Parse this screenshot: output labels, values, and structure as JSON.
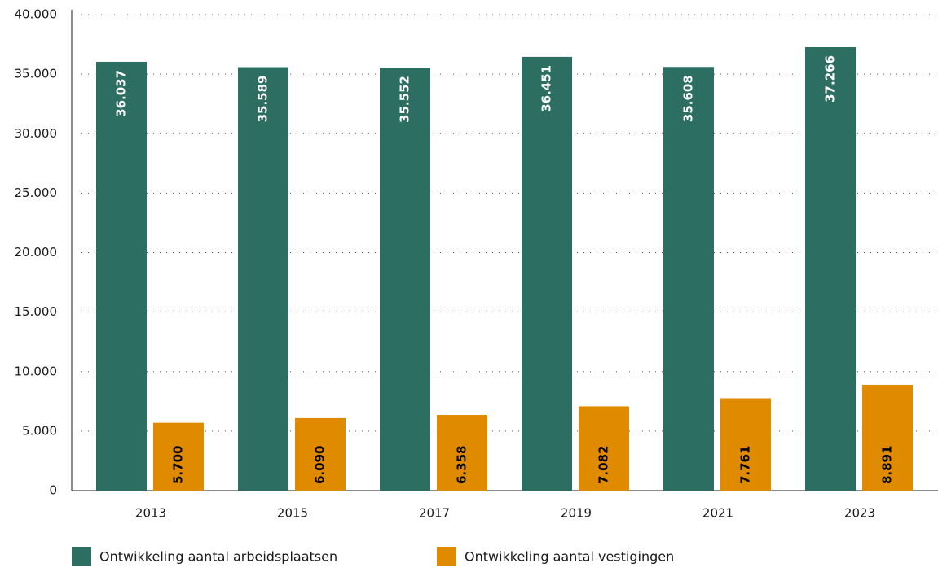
{
  "chart_data": {
    "type": "bar",
    "categories": [
      "2013",
      "2015",
      "2017",
      "2019",
      "2021",
      "2023"
    ],
    "series": [
      {
        "name": "Ontwikkeling aantal arbeidsplaatsen",
        "color": "#2d6e62",
        "values": [
          36037,
          35589,
          35552,
          36451,
          35608,
          37266
        ],
        "value_labels": [
          "36.037",
          "35.589",
          "35.552",
          "36.451",
          "35.608",
          "37.266"
        ]
      },
      {
        "name": "Ontwikkeling aantal vestigingen",
        "color": "#e08a00",
        "values": [
          5700,
          6090,
          6358,
          7082,
          7761,
          8891
        ],
        "value_labels": [
          "5.700",
          "6.090",
          "6.358",
          "7.082",
          "7.761",
          "8.891"
        ]
      }
    ],
    "ylim": [
      0,
      40000
    ],
    "yticks": [
      {
        "value": 0,
        "label": "0"
      },
      {
        "value": 5000,
        "label": "5.000"
      },
      {
        "value": 10000,
        "label": "10.000"
      },
      {
        "value": 15000,
        "label": "15.000"
      },
      {
        "value": 20000,
        "label": "20.000"
      },
      {
        "value": 25000,
        "label": "25.000"
      },
      {
        "value": 30000,
        "label": "30.000"
      },
      {
        "value": 35000,
        "label": "35.000"
      },
      {
        "value": 40000,
        "label": "40.000"
      }
    ],
    "grid": true,
    "legend": "bottom"
  }
}
